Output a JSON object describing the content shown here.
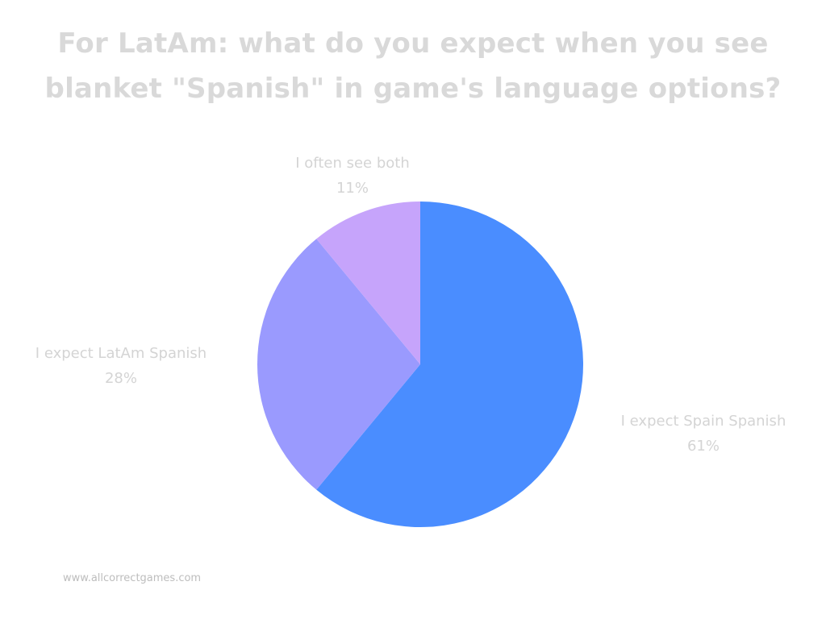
{
  "chart_data": {
    "type": "pie",
    "title_lines": [
      "For LatAm: what do you expect when you see",
      "blanket \"Spanish\" in game's language options?"
    ],
    "slices": [
      {
        "label": "I expect Spain Spanish",
        "value": 61,
        "value_label": "61%",
        "color": "#4a8dff"
      },
      {
        "label": "I expect LatAm Spanish",
        "value": 28,
        "value_label": "28%",
        "color": "#9a9afe"
      },
      {
        "label": "I often see both",
        "value": 11,
        "value_label": "11%",
        "color": "#c6a4fb"
      }
    ],
    "start": "top",
    "direction": "clockwise"
  },
  "footer": {
    "source": "www.allcorrectgames.com"
  }
}
